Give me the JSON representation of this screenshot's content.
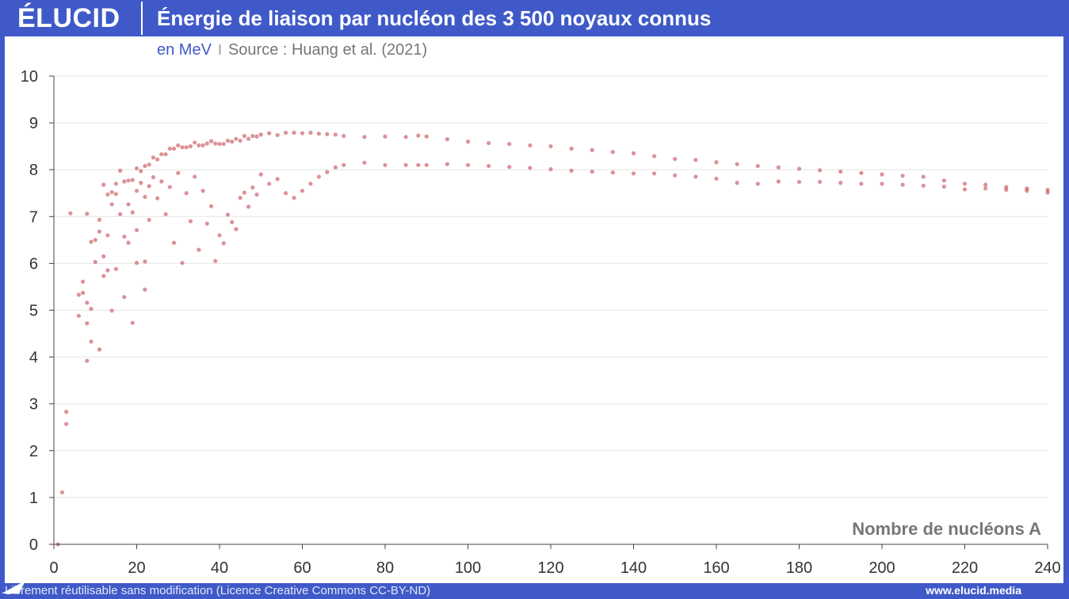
{
  "header": {
    "logo": "ÉLUCID",
    "title": "Énergie de liaison par nucléon des 3 500 noyaux connus"
  },
  "subtitle": {
    "unit": "en MeV",
    "separator": "I",
    "source": "Source : Huang et al. (2021)"
  },
  "footer": {
    "license": "Librement réutilisable sans modification (Licence Creative Commons CC-BY-ND)",
    "site": "www.elucid.media"
  },
  "colors": {
    "brand": "#3f5ac8",
    "point": "#c0393f",
    "grid": "#e6e6e6"
  },
  "chart_data": {
    "type": "scatter",
    "title": "Énergie de liaison par nucléon des 3 500 noyaux connus",
    "xlabel": "Nombre de nucléons A",
    "ylabel": "en MeV",
    "xlim": [
      0,
      240
    ],
    "ylim": [
      0,
      10
    ],
    "xticks": [
      0,
      20,
      40,
      60,
      80,
      100,
      120,
      140,
      160,
      180,
      200,
      220,
      240
    ],
    "yticks": [
      0,
      1,
      2,
      3,
      4,
      5,
      6,
      7,
      8,
      9,
      10
    ],
    "grid": "horizontal",
    "series": [
      {
        "points": [
          [
            1,
            0
          ],
          [
            2,
            1.11
          ],
          [
            3,
            2.57
          ],
          [
            3,
            2.83
          ],
          [
            4,
            7.07
          ],
          [
            6,
            5.33
          ],
          [
            6,
            4.88
          ],
          [
            7,
            5.61
          ],
          [
            7,
            5.37
          ],
          [
            8,
            7.06
          ],
          [
            8,
            3.92
          ],
          [
            8,
            4.72
          ],
          [
            8,
            5.16
          ],
          [
            9,
            6.46
          ],
          [
            9,
            5.03
          ],
          [
            9,
            4.33
          ],
          [
            10,
            6.5
          ],
          [
            10,
            6.03
          ],
          [
            11,
            6.93
          ],
          [
            11,
            6.68
          ],
          [
            11,
            4.16
          ],
          [
            12,
            7.68
          ],
          [
            12,
            6.15
          ],
          [
            12,
            5.73
          ],
          [
            13,
            7.47
          ],
          [
            13,
            6.6
          ],
          [
            13,
            5.85
          ],
          [
            14,
            7.52
          ],
          [
            14,
            7.26
          ],
          [
            14,
            4.99
          ],
          [
            15,
            7.7
          ],
          [
            15,
            7.48
          ],
          [
            15,
            5.88
          ],
          [
            16,
            7.98
          ],
          [
            16,
            7.05
          ],
          [
            17,
            7.75
          ],
          [
            17,
            6.57
          ],
          [
            17,
            5.28
          ],
          [
            18,
            7.77
          ],
          [
            18,
            7.26
          ],
          [
            18,
            6.44
          ],
          [
            19,
            7.78
          ],
          [
            19,
            7.09
          ],
          [
            19,
            4.73
          ],
          [
            20,
            8.03
          ],
          [
            20,
            7.55
          ],
          [
            20,
            6.71
          ],
          [
            20,
            6.01
          ],
          [
            21,
            7.97
          ],
          [
            21,
            7.72
          ],
          [
            22,
            8.08
          ],
          [
            22,
            7.42
          ],
          [
            22,
            6.04
          ],
          [
            22,
            5.44
          ],
          [
            23,
            8.11
          ],
          [
            23,
            7.65
          ],
          [
            23,
            6.93
          ],
          [
            24,
            8.26
          ],
          [
            24,
            7.84
          ],
          [
            25,
            8.22
          ],
          [
            25,
            7.39
          ],
          [
            26,
            8.33
          ],
          [
            26,
            7.75
          ],
          [
            27,
            8.33
          ],
          [
            27,
            7.05
          ],
          [
            28,
            8.45
          ],
          [
            28,
            7.63
          ],
          [
            29,
            8.45
          ],
          [
            29,
            6.44
          ],
          [
            30,
            8.52
          ],
          [
            30,
            7.93
          ],
          [
            31,
            8.48
          ],
          [
            31,
            6.01
          ],
          [
            32,
            8.48
          ],
          [
            32,
            7.5
          ],
          [
            33,
            8.5
          ],
          [
            33,
            6.9
          ],
          [
            34,
            8.58
          ],
          [
            34,
            7.85
          ],
          [
            35,
            8.52
          ],
          [
            35,
            6.29
          ],
          [
            36,
            8.52
          ],
          [
            36,
            7.55
          ],
          [
            37,
            8.56
          ],
          [
            37,
            6.85
          ],
          [
            38,
            8.61
          ],
          [
            38,
            7.22
          ],
          [
            39,
            8.56
          ],
          [
            39,
            6.05
          ],
          [
            40,
            8.55
          ],
          [
            40,
            6.6
          ],
          [
            41,
            8.55
          ],
          [
            41,
            6.43
          ],
          [
            42,
            8.62
          ],
          [
            42,
            7.04
          ],
          [
            43,
            8.6
          ],
          [
            43,
            6.88
          ],
          [
            44,
            8.66
          ],
          [
            44,
            6.73
          ],
          [
            45,
            8.62
          ],
          [
            45,
            7.4
          ],
          [
            46,
            8.72
          ],
          [
            46,
            7.51
          ],
          [
            47,
            8.66
          ],
          [
            47,
            7.21
          ],
          [
            48,
            8.72
          ],
          [
            48,
            7.62
          ],
          [
            49,
            8.71
          ],
          [
            49,
            7.47
          ],
          [
            50,
            8.75
          ],
          [
            50,
            7.9
          ],
          [
            52,
            8.78
          ],
          [
            52,
            7.7
          ],
          [
            54,
            8.74
          ],
          [
            54,
            7.8
          ],
          [
            56,
            8.79
          ],
          [
            56,
            7.5
          ],
          [
            58,
            8.79
          ],
          [
            58,
            7.4
          ],
          [
            60,
            8.78
          ],
          [
            60,
            7.55
          ],
          [
            62,
            8.79
          ],
          [
            62,
            7.7
          ],
          [
            64,
            8.77
          ],
          [
            64,
            7.85
          ],
          [
            66,
            8.76
          ],
          [
            66,
            7.95
          ],
          [
            68,
            8.75
          ],
          [
            68,
            8.05
          ],
          [
            70,
            8.72
          ],
          [
            70,
            8.1
          ],
          [
            75,
            8.7
          ],
          [
            75,
            8.15
          ],
          [
            80,
            8.71
          ],
          [
            80,
            8.1
          ],
          [
            85,
            8.7
          ],
          [
            85,
            8.1
          ],
          [
            88,
            8.73
          ],
          [
            88,
            8.1
          ],
          [
            90,
            8.71
          ],
          [
            90,
            8.1
          ],
          [
            95,
            8.65
          ],
          [
            95,
            8.12
          ],
          [
            100,
            8.6
          ],
          [
            100,
            8.1
          ],
          [
            105,
            8.57
          ],
          [
            105,
            8.08
          ],
          [
            110,
            8.55
          ],
          [
            110,
            8.06
          ],
          [
            115,
            8.52
          ],
          [
            115,
            8.04
          ],
          [
            120,
            8.5
          ],
          [
            120,
            8.01
          ],
          [
            125,
            8.45
          ],
          [
            125,
            7.98
          ],
          [
            130,
            8.42
          ],
          [
            130,
            7.96
          ],
          [
            135,
            8.38
          ],
          [
            135,
            7.94
          ],
          [
            140,
            8.35
          ],
          [
            140,
            7.92
          ],
          [
            145,
            8.29
          ],
          [
            145,
            7.92
          ],
          [
            150,
            8.23
          ],
          [
            150,
            7.88
          ],
          [
            155,
            8.21
          ],
          [
            155,
            7.85
          ],
          [
            160,
            8.16
          ],
          [
            160,
            7.81
          ],
          [
            165,
            8.12
          ],
          [
            165,
            7.72
          ],
          [
            170,
            8.08
          ],
          [
            170,
            7.7
          ],
          [
            175,
            8.05
          ],
          [
            175,
            7.75
          ],
          [
            180,
            8.02
          ],
          [
            180,
            7.74
          ],
          [
            185,
            7.99
          ],
          [
            185,
            7.74
          ],
          [
            190,
            7.96
          ],
          [
            190,
            7.72
          ],
          [
            195,
            7.93
          ],
          [
            195,
            7.7
          ],
          [
            200,
            7.9
          ],
          [
            200,
            7.7
          ],
          [
            205,
            7.87
          ],
          [
            205,
            7.68
          ],
          [
            210,
            7.85
          ],
          [
            210,
            7.66
          ],
          [
            215,
            7.77
          ],
          [
            215,
            7.64
          ],
          [
            220,
            7.7
          ],
          [
            220,
            7.58
          ],
          [
            225,
            7.68
          ],
          [
            225,
            7.6
          ],
          [
            230,
            7.63
          ],
          [
            230,
            7.57
          ],
          [
            235,
            7.6
          ],
          [
            235,
            7.55
          ],
          [
            240,
            7.57
          ],
          [
            240,
            7.51
          ]
        ]
      }
    ]
  }
}
